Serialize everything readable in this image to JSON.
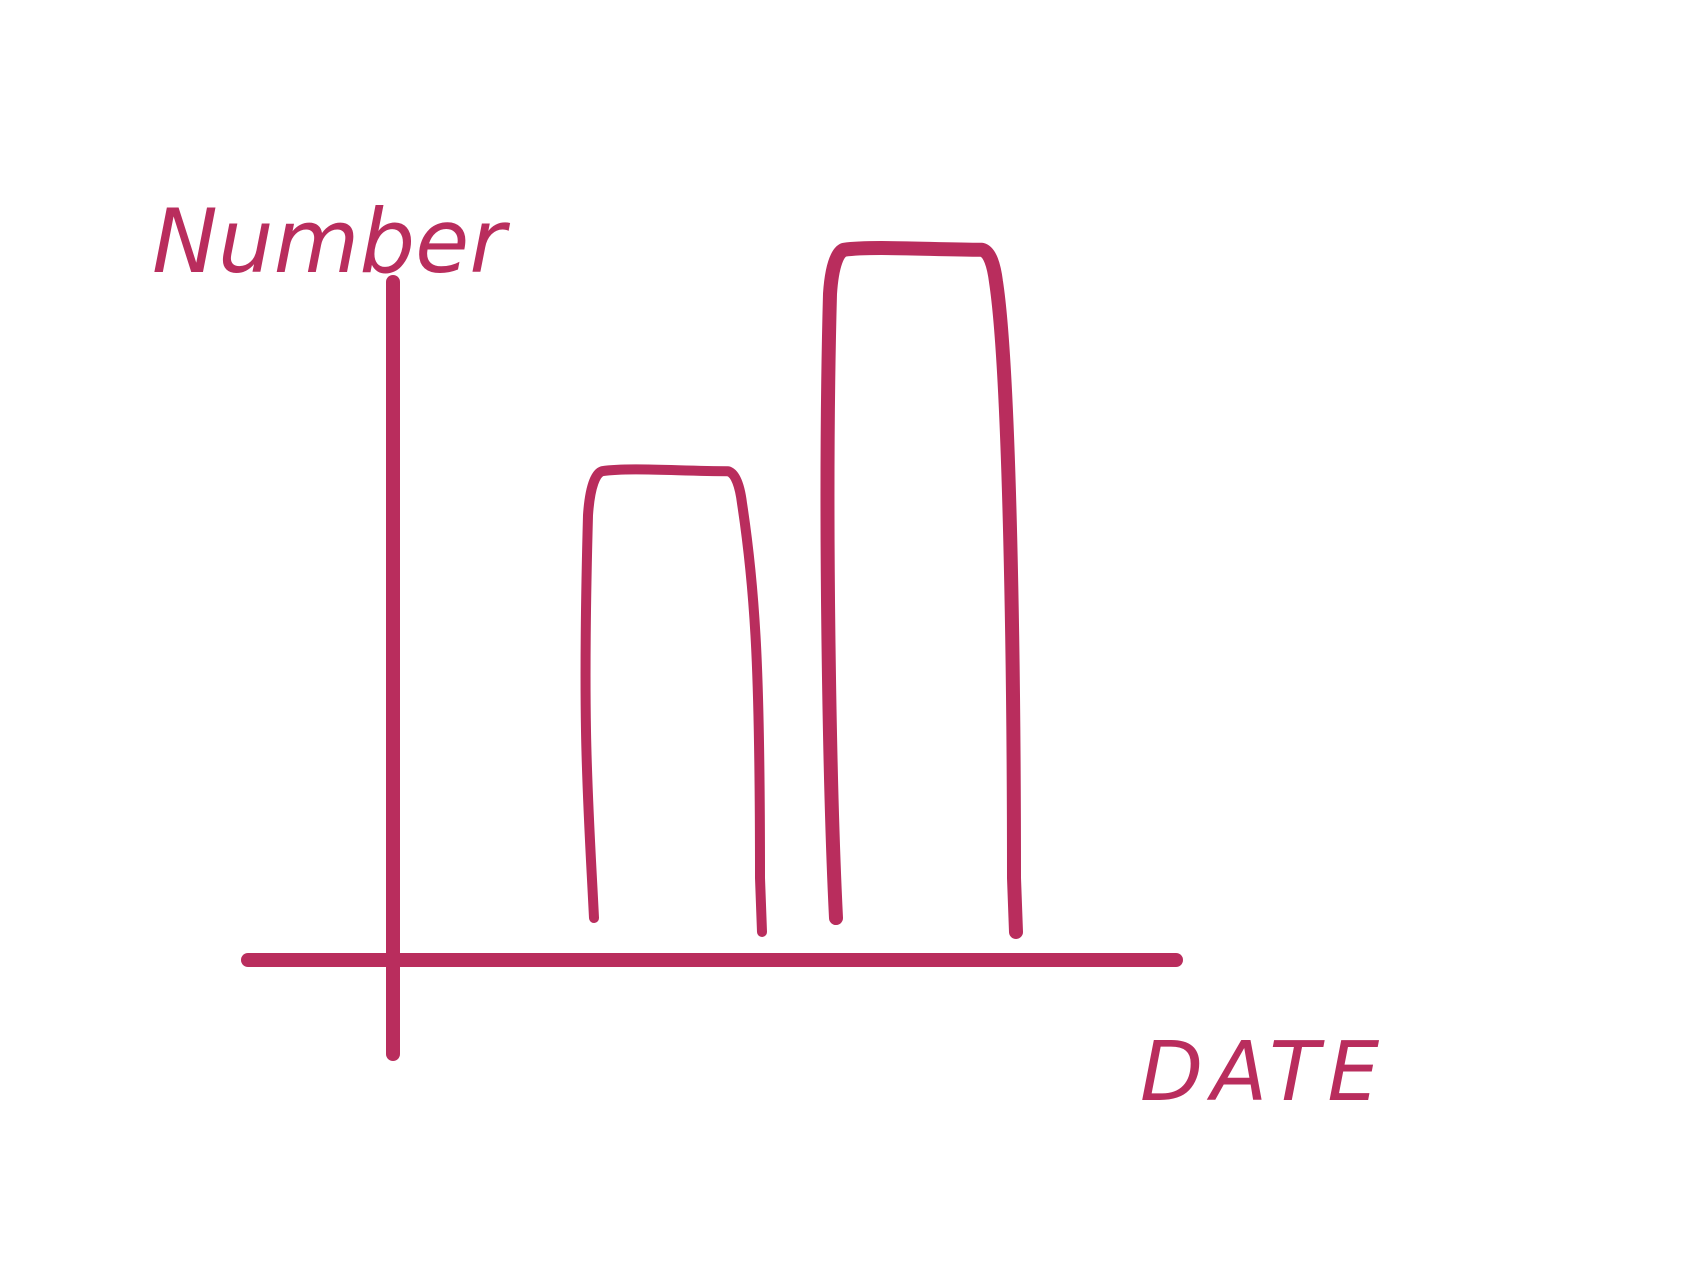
{
  "colors": {
    "ink": "#b92d5d",
    "background": "#ffffff"
  },
  "chart_data": {
    "type": "bar",
    "title": "",
    "xlabel": "DATE",
    "ylabel": "Number",
    "categories": [
      "",
      ""
    ],
    "values": [
      60,
      90
    ],
    "ylim": [
      0,
      100
    ],
    "grid": false,
    "legend": "none",
    "style": "hand-drawn sketch, open-bottom bars with no fill, no tick labels"
  }
}
